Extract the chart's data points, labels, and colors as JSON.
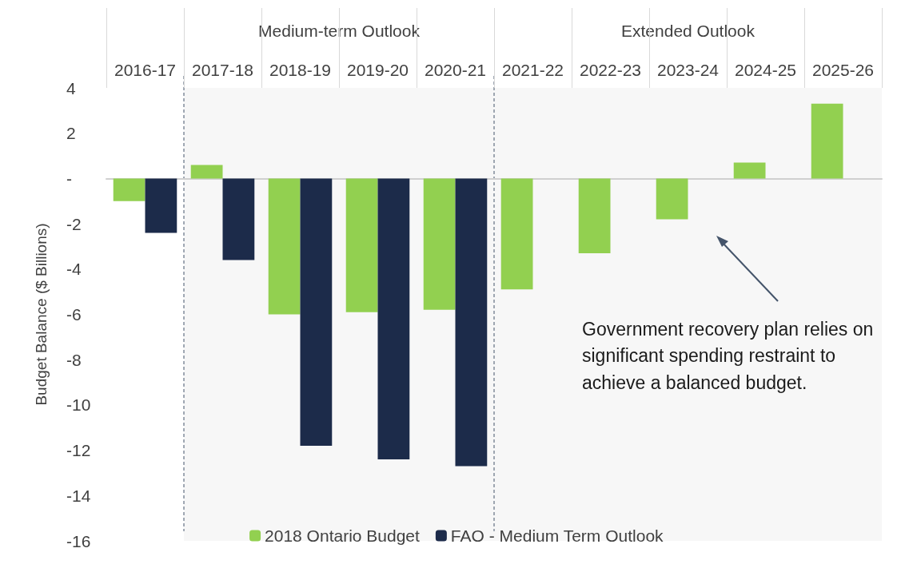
{
  "chart_data": {
    "type": "bar",
    "ylabel": "Budget Balance ($ Billions)",
    "categories": [
      "2016-17",
      "2017-18",
      "2018-19",
      "2019-20",
      "2020-21",
      "2021-22",
      "2022-23",
      "2023-24",
      "2024-25",
      "2025-26"
    ],
    "series": [
      {
        "name": "2018 Ontario Budget",
        "color": "#92d050",
        "values": [
          -1.0,
          0.6,
          -6.0,
          -5.9,
          -5.8,
          -4.9,
          -3.3,
          -1.8,
          0.7,
          3.3
        ]
      },
      {
        "name": "FAO - Medium Term Outlook",
        "color": "#1c2b4a",
        "values": [
          -2.4,
          -3.6,
          -11.8,
          -12.4,
          -12.7,
          null,
          null,
          null,
          null,
          null
        ]
      }
    ],
    "ylim": [
      -16,
      4
    ],
    "yticks": [
      -16,
      -14,
      -12,
      -10,
      -8,
      -6,
      -4,
      -2,
      {
        "value": 0,
        "label": "-"
      },
      2,
      4
    ],
    "grid": false,
    "legend": "bottom",
    "bands": [
      {
        "axis": "x",
        "from": "2017-18",
        "to": "2020-21",
        "label": "Medium-term Outlook",
        "color": "#f7f7f7"
      },
      {
        "axis": "x",
        "from": "2021-22",
        "to": "2025-26",
        "label": "Extended Outlook",
        "color": "#f7f7f7"
      }
    ],
    "annotations": [
      "Government recovery plan relies on significant spending restraint to achieve a balanced budget."
    ]
  }
}
